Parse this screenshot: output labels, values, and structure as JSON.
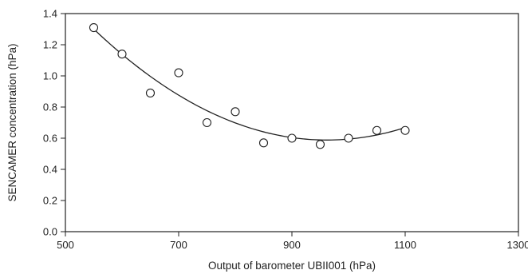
{
  "chart_data": {
    "type": "scatter",
    "title": "",
    "xlabel": "Output of barometer UBII001 (hPa)",
    "ylabel": "SENCAMER concentration (hPa)",
    "xlim": [
      500,
      1300
    ],
    "ylim": [
      0,
      1.4
    ],
    "xticks": [
      500,
      700,
      900,
      1100,
      1300
    ],
    "xtick_labels": [
      "500",
      "700",
      "900",
      "1100",
      "1300"
    ],
    "yticks": [
      0,
      0.2,
      0.4,
      0.6,
      0.8,
      1.0,
      1.2,
      1.4
    ],
    "ytick_labels": [
      "0.0",
      "0.2",
      "0.4",
      "0.6",
      "0.8",
      "1.0",
      "1.2",
      "1.4"
    ],
    "grid": false,
    "marker": "open-circle",
    "points": [
      {
        "x": 550,
        "y": 1.31
      },
      {
        "x": 600,
        "y": 1.14
      },
      {
        "x": 650,
        "y": 0.89
      },
      {
        "x": 700,
        "y": 1.02
      },
      {
        "x": 750,
        "y": 0.7
      },
      {
        "x": 800,
        "y": 0.77
      },
      {
        "x": 850,
        "y": 0.57
      },
      {
        "x": 900,
        "y": 0.6
      },
      {
        "x": 950,
        "y": 0.56
      },
      {
        "x": 1000,
        "y": 0.6
      },
      {
        "x": 1050,
        "y": 0.65
      },
      {
        "x": 1100,
        "y": 0.65
      }
    ],
    "trend": {
      "type": "quadratic",
      "x_range": [
        550,
        1100
      ],
      "points": [
        {
          "x": 550,
          "y": 1.3
        },
        {
          "x": 750,
          "y": 0.78
        },
        {
          "x": 950,
          "y": 0.585
        },
        {
          "x": 1100,
          "y": 0.67
        }
      ]
    },
    "colors": {
      "axis": "#222222",
      "marker": "#222222",
      "line": "#222222",
      "background": "#ffffff"
    }
  }
}
